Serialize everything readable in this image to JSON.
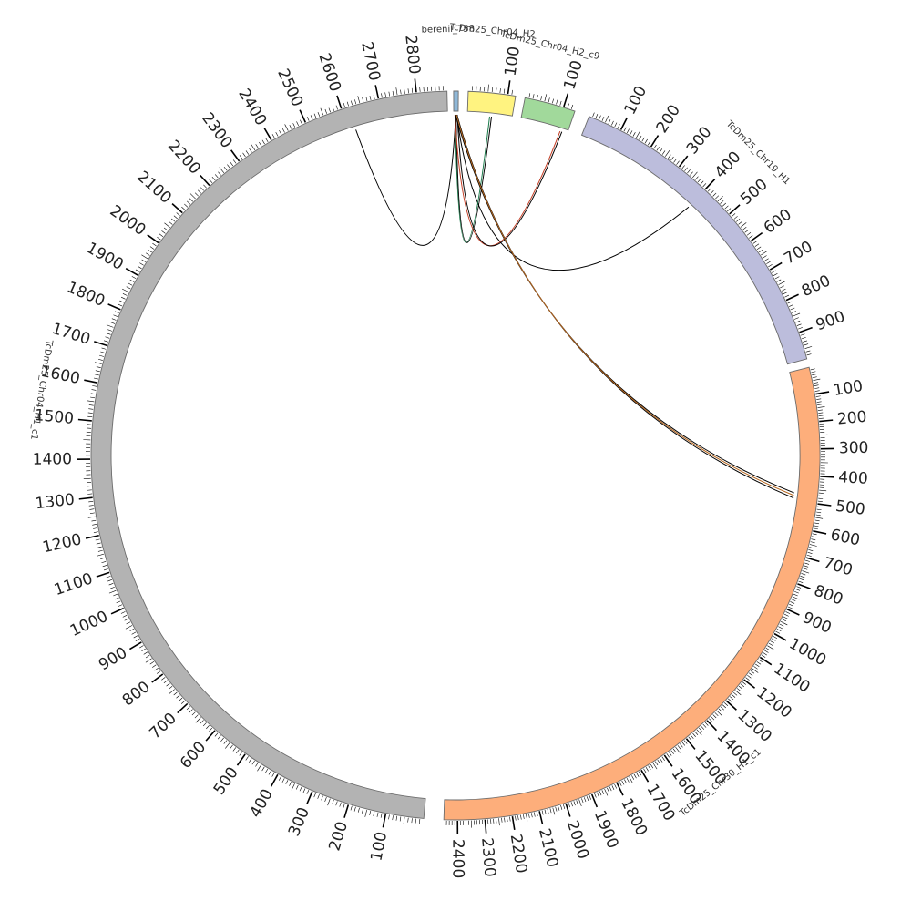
{
  "chart_data": {
    "type": "circos",
    "title": "",
    "segments": [
      {
        "id": "berenil_758",
        "label": "berenil_758",
        "length": 1.5,
        "color": "#8fb8d8",
        "tick_labels": []
      },
      {
        "id": "chr04_H2",
        "label": "TcDm25_Chr04_H2",
        "length": 120,
        "color": "#fff380",
        "tick_labels": [
          "100"
        ]
      },
      {
        "id": "chr04_H2_c9",
        "label": "TcDm25_Chr04_H2_c9",
        "length": 130,
        "color": "#a1d99b",
        "tick_labels": [
          "100"
        ]
      },
      {
        "id": "chr19_H1",
        "label": "TcDm25_Chr19_H1",
        "length": 980,
        "color": "#bcbddc",
        "tick_labels": [
          "100",
          "200",
          "300",
          "400",
          "500",
          "600",
          "700",
          "800",
          "900"
        ]
      },
      {
        "id": "chr30_H1_c1",
        "label": "TcDm25_Chr30_H1_c1",
        "length": 2450,
        "color": "#fdae7b",
        "tick_labels": [
          "100",
          "200",
          "300",
          "400",
          "500",
          "600",
          "700",
          "800",
          "900",
          "1000",
          "1100",
          "1200",
          "1300",
          "1400",
          "1500",
          "1600",
          "1700",
          "1800",
          "1900",
          "2000",
          "2100",
          "2200",
          "2300",
          "2400"
        ]
      },
      {
        "id": "chr04_H1_c1",
        "label": "TcDm25_Chr04_H1_c1",
        "length": 2880,
        "color": "#b3b3b3",
        "tick_labels": [
          "100",
          "200",
          "300",
          "400",
          "500",
          "600",
          "700",
          "800",
          "900",
          "1000",
          "1100",
          "1200",
          "1300",
          "1400",
          "1500",
          "1600",
          "1700",
          "1800",
          "1900",
          "2000",
          "2100",
          "2200",
          "2300",
          "2400",
          "2500",
          "2600",
          "2700",
          "2800"
        ]
      }
    ],
    "links": [
      {
        "from": "chr04_H1_c1",
        "from_pos": 2620,
        "to": "berenil_758",
        "to_pos": 0.7,
        "color": "#000000"
      },
      {
        "from": "chr19_H1",
        "from_pos": 400,
        "to": "berenil_758",
        "to_pos": 1.0,
        "color": "#000000"
      },
      {
        "from": "chr04_H2",
        "from_pos": 60,
        "to": "berenil_758",
        "to_pos": 0.5,
        "color": "#1a7a4a"
      },
      {
        "from": "chr04_H2",
        "from_pos": 65,
        "to": "berenil_758",
        "to_pos": 0.8,
        "color": "#000000"
      },
      {
        "from": "chr04_H2_c9",
        "from_pos": 110,
        "to": "berenil_758",
        "to_pos": 0.4,
        "color": "#c23b22"
      },
      {
        "from": "chr04_H2_c9",
        "from_pos": 115,
        "to": "berenil_758",
        "to_pos": 1.2,
        "color": "#000000"
      },
      {
        "from": "chr30_H1_c1",
        "from_pos": 470,
        "to": "berenil_758",
        "to_pos": 0.6,
        "color": "#000000"
      },
      {
        "from": "chr30_H1_c1",
        "from_pos": 490,
        "to": "berenil_758",
        "to_pos": 1.1,
        "color": "#000000"
      },
      {
        "from": "chr30_H1_c1",
        "from_pos": 480,
        "to": "berenil_758",
        "to_pos": 0.9,
        "color": "#b5651d"
      }
    ]
  }
}
